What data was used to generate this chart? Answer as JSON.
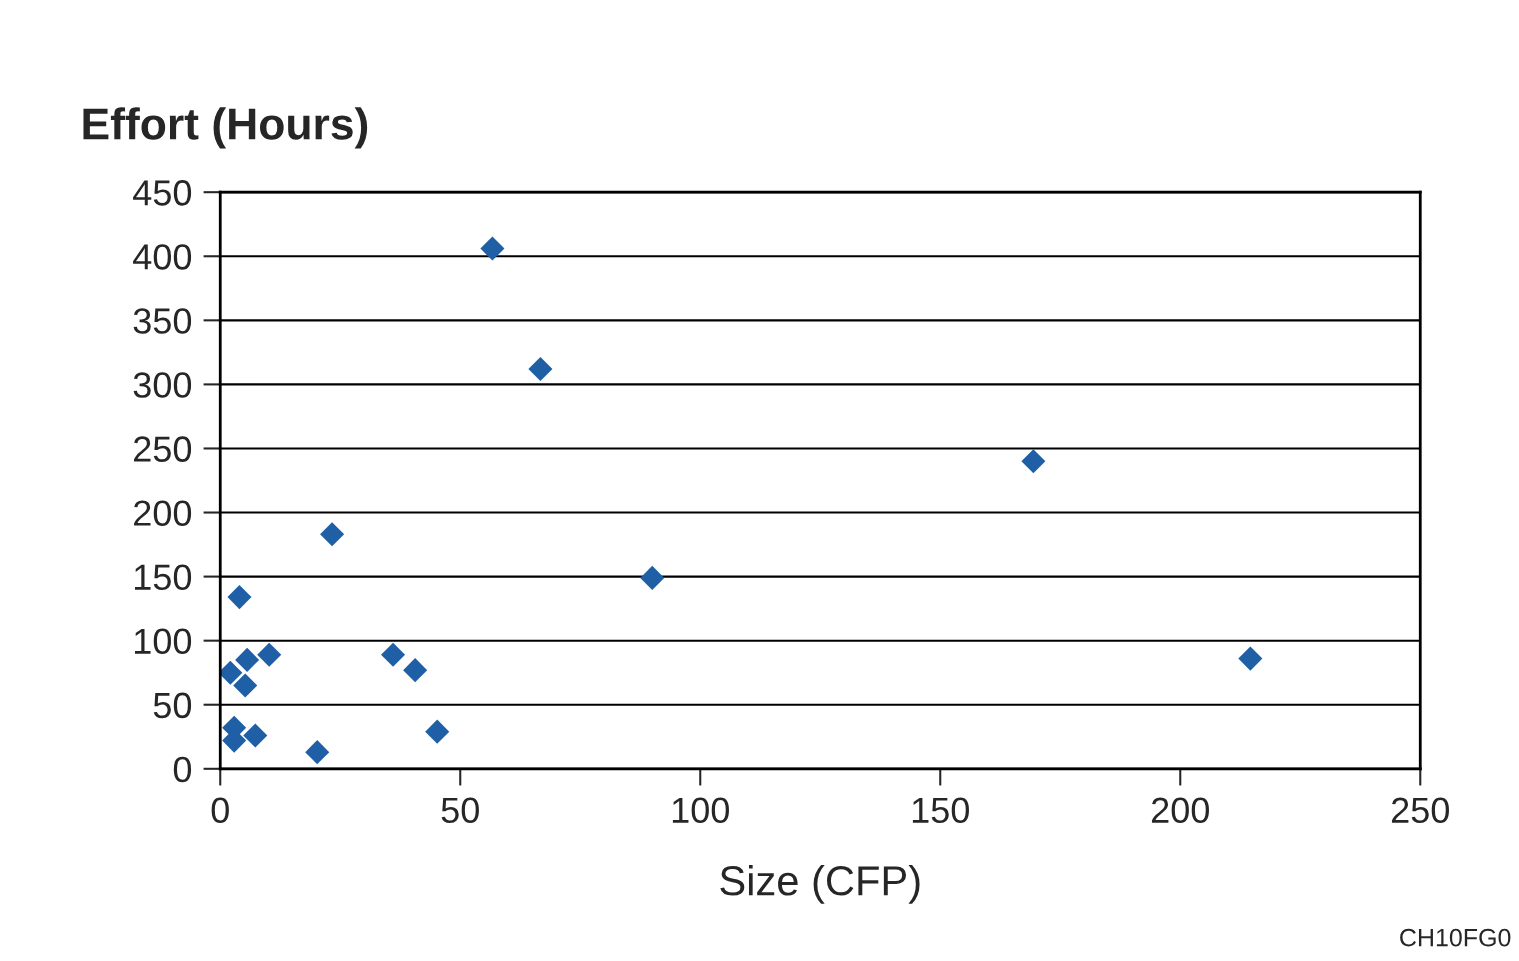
{
  "chart_data": {
    "type": "scatter",
    "ylabel": "Effort (Hours)",
    "xlabel": "Size (CFP)",
    "x": [
      56.7,
      66.7,
      169.4,
      23.3,
      90,
      4.0,
      214.6,
      10.2,
      36.0,
      5.6,
      40.6,
      2.1,
      5.2,
      2.9,
      45.2,
      7.3,
      2.9,
      20.2
    ],
    "series": [
      {
        "color": "#1f5fa6",
        "values": [
          406,
          312,
          240,
          183,
          149,
          134,
          86,
          89,
          89,
          85,
          77,
          75,
          65,
          32,
          29,
          26,
          22,
          13
        ]
      }
    ],
    "xlim": [
      0,
      250
    ],
    "xticks": [
      0,
      50,
      100,
      150,
      200,
      250
    ],
    "ylim": [
      0,
      450
    ],
    "yticks": [
      0,
      50,
      100,
      150,
      200,
      250,
      300,
      350,
      400,
      450
    ],
    "grid": "y",
    "marker": "diamond",
    "annotations": [
      "CH10FG0"
    ]
  }
}
